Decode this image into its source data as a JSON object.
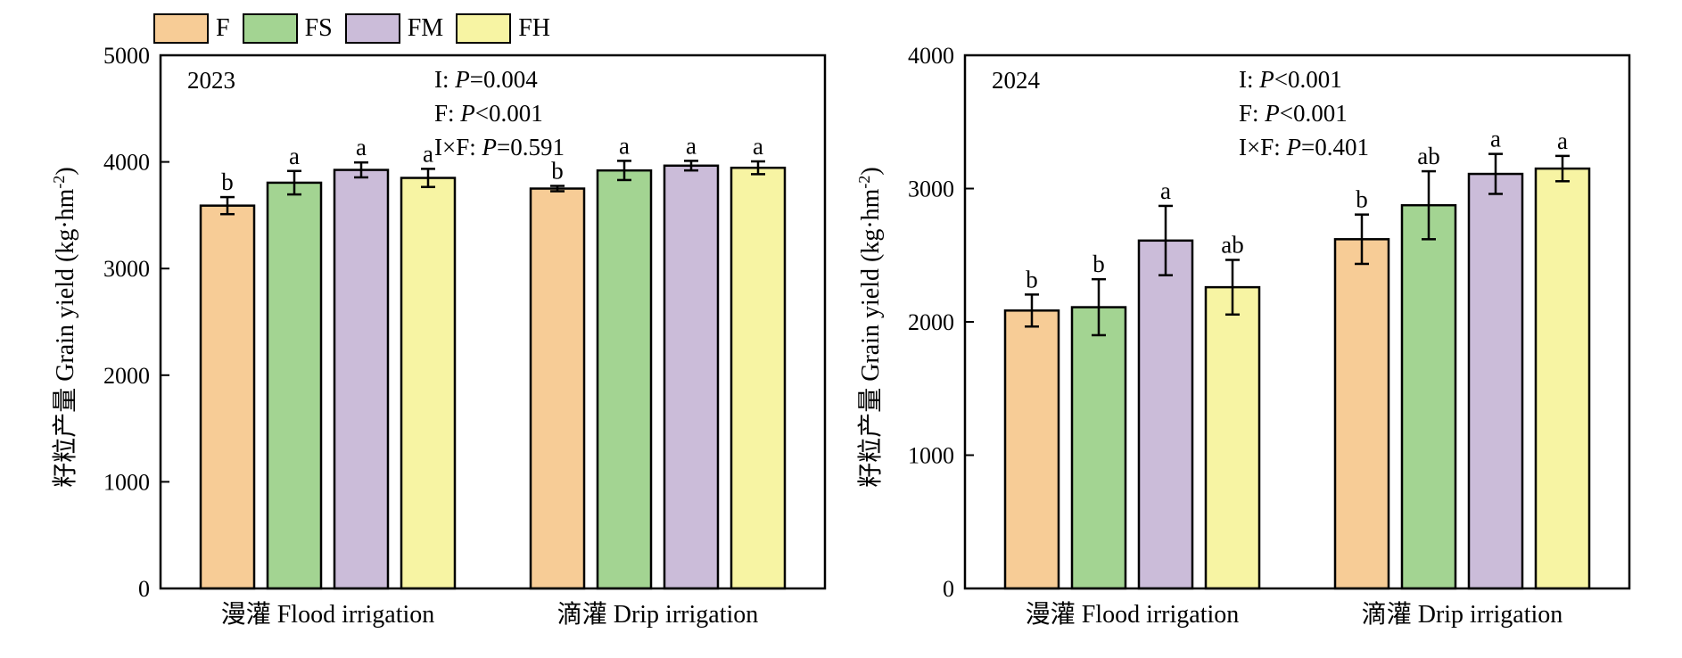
{
  "legend": [
    {
      "label": "F",
      "color": "#f7cc96"
    },
    {
      "label": "FS",
      "color": "#a3d492"
    },
    {
      "label": "FM",
      "color": "#cbbcd9"
    },
    {
      "label": "FH",
      "color": "#f7f4a3"
    }
  ],
  "chart_data": [
    {
      "type": "bar",
      "year": "2023",
      "categories": [
        "漫灌 Flood irrigation",
        "滴灌 Drip irrigation"
      ],
      "ylabel": "籽粒产量 Grain yield (kg·hm⁻²)",
      "ylim": [
        0,
        5000
      ],
      "yticks": [
        0,
        1000,
        2000,
        3000,
        4000,
        5000
      ],
      "stats": [
        "I: P=0.004",
        "F: P<0.001",
        "I×F: P=0.591"
      ],
      "series": [
        {
          "name": "F",
          "values": [
            3590,
            3750
          ],
          "errors": [
            80,
            25
          ],
          "letters": [
            "b",
            "b"
          ]
        },
        {
          "name": "FS",
          "values": [
            3805,
            3920
          ],
          "errors": [
            110,
            90
          ],
          "letters": [
            "a",
            "a"
          ]
        },
        {
          "name": "FM",
          "values": [
            3925,
            3965
          ],
          "errors": [
            70,
            45
          ],
          "letters": [
            "a",
            "a"
          ]
        },
        {
          "name": "FH",
          "values": [
            3850,
            3945
          ],
          "errors": [
            85,
            60
          ],
          "letters": [
            "a",
            "a"
          ]
        }
      ]
    },
    {
      "type": "bar",
      "year": "2024",
      "categories": [
        "漫灌 Flood irrigation",
        "滴灌 Drip irrigation"
      ],
      "ylabel": "籽粒产量 Grain yield (kg·hm⁻²)",
      "ylim": [
        0,
        4000
      ],
      "yticks": [
        0,
        1000,
        2000,
        3000,
        4000
      ],
      "stats": [
        "I: P<0.001",
        "F: P<0.001",
        "I×F: P=0.401"
      ],
      "series": [
        {
          "name": "F",
          "values": [
            2085,
            2620
          ],
          "errors": [
            120,
            185
          ],
          "letters": [
            "b",
            "b"
          ]
        },
        {
          "name": "FS",
          "values": [
            2110,
            2875
          ],
          "errors": [
            210,
            255
          ],
          "letters": [
            "b",
            "ab"
          ]
        },
        {
          "name": "FM",
          "values": [
            2610,
            3110
          ],
          "errors": [
            260,
            150
          ],
          "letters": [
            "a",
            "a"
          ]
        },
        {
          "name": "FH",
          "values": [
            2260,
            3150
          ],
          "errors": [
            205,
            95
          ],
          "letters": [
            "ab",
            "a"
          ]
        }
      ]
    }
  ]
}
